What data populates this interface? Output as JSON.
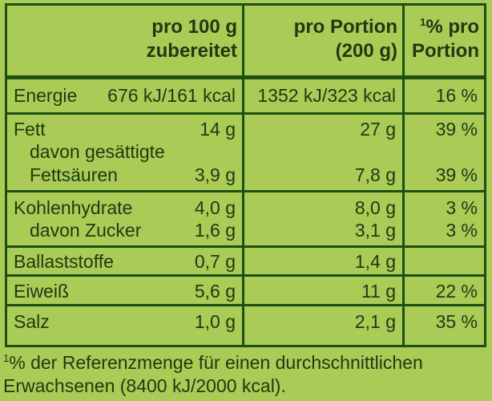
{
  "headers": {
    "col1_line1": "pro 100 g",
    "col1_line2": "zubereitet",
    "col2_line1": "pro Portion",
    "col2_line2": "(200 g)",
    "col3_sup": "1",
    "col3_line1": "% pro",
    "col3_line2": "Portion"
  },
  "rows": {
    "energie": {
      "label": "Energie",
      "per100": "676 kJ/161 kcal",
      "portion": "1352 kJ/323 kcal",
      "pct": "16 %"
    },
    "fett": {
      "label": "Fett",
      "per100": "14 g",
      "portion": "27 g",
      "pct": "39 %"
    },
    "fett_sub1": {
      "label": "davon gesättigte"
    },
    "fett_sub2": {
      "label": "Fettsäuren",
      "per100": "3,9 g",
      "portion": "7,8 g",
      "pct": "39 %"
    },
    "kh": {
      "label": "Kohlenhydrate",
      "per100": "4,0 g",
      "portion": "8,0 g",
      "pct": "3 %"
    },
    "zucker": {
      "label": "davon Zucker",
      "per100": "1,6 g",
      "portion": "3,1 g",
      "pct": "3 %"
    },
    "ballast": {
      "label": "Ballaststoffe",
      "per100": "0,7 g",
      "portion": "1,4 g",
      "pct": ""
    },
    "eiweiss": {
      "label": "Eiweiß",
      "per100": "5,6 g",
      "portion": "11 g",
      "pct": "22 %"
    },
    "salz": {
      "label": "Salz",
      "per100": "1,0 g",
      "portion": "2,1 g",
      "pct": "35 %"
    }
  },
  "footnote": {
    "sup": "1",
    "line1": "% der Referenzmenge für einen durchschnittlichen",
    "line2": "Erwachsenen (8400 kJ/2000 kcal)."
  }
}
